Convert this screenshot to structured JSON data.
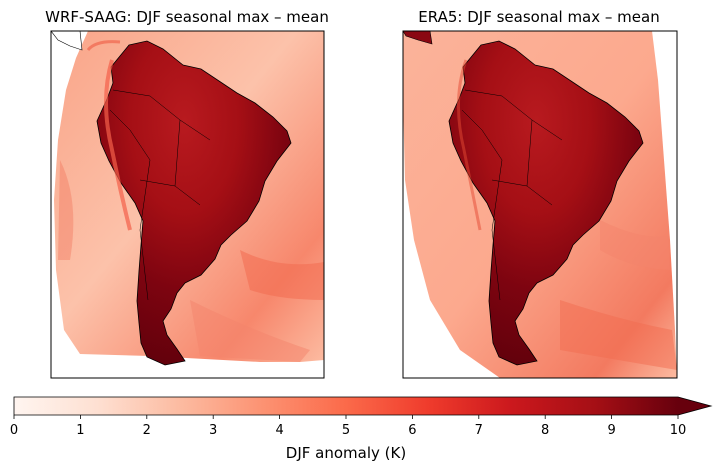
{
  "chart_data": {
    "type": "heatmap",
    "panels": [
      {
        "title": "WRF-SAAG: DJF seasonal max – mean"
      },
      {
        "title": "ERA5: DJF seasonal max – mean"
      }
    ],
    "colorbar": {
      "label": "DJF anomaly (K)",
      "range": [
        0,
        10
      ],
      "ticks": [
        "0",
        "1",
        "2",
        "3",
        "4",
        "5",
        "6",
        "7",
        "8",
        "9",
        "10"
      ],
      "extend": "max",
      "colormap": "Reds"
    },
    "colors": {
      "land_high": "#6b0010",
      "land_mid": "#a50f15",
      "ocean_low": "#fcbba1",
      "ocean_mid": "#f4836b"
    }
  }
}
